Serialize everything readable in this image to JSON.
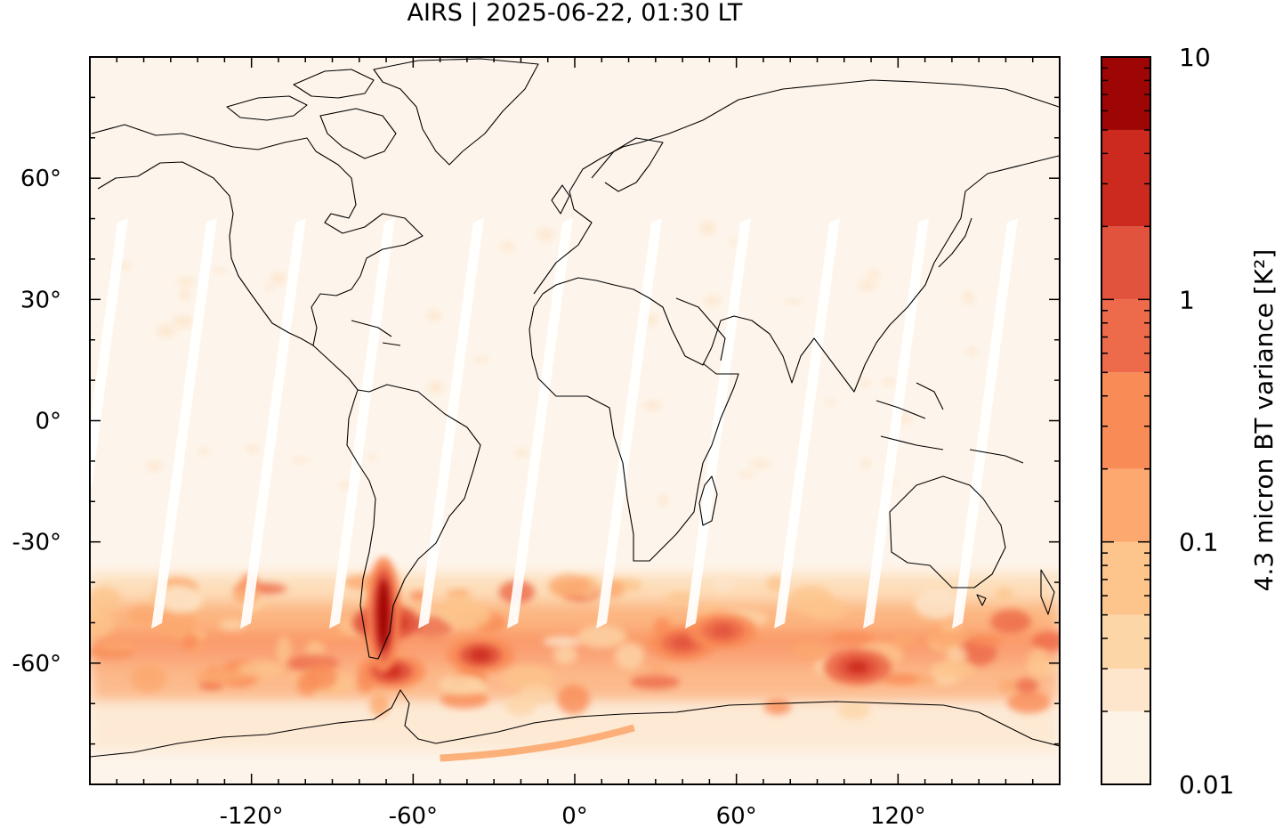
{
  "title": "AIRS | 2025-06-22, 01:30 LT",
  "map": {
    "projection": "equirectangular",
    "lon_range": [
      -180,
      180
    ],
    "lat_range": [
      -90,
      90
    ],
    "x_ticks": [
      "-120°",
      "-60°",
      "0°",
      "60°",
      "120°"
    ],
    "x_tick_values": [
      -120,
      -60,
      0,
      60,
      120
    ],
    "y_ticks": [
      "60°",
      "30°",
      "0°",
      "-30°",
      "-60°"
    ],
    "y_tick_values": [
      60,
      30,
      0,
      -30,
      -60
    ],
    "coastline_color": "#000000",
    "background_color": "#fdf5ec",
    "swath_gap_color": "#ffffff",
    "features": [
      {
        "name": "gravity-wave hotspot over southern Andes / Patagonia",
        "lon": -70,
        "lat": -50,
        "variance": 10
      },
      {
        "name": "Drake Passage / Antarctic Peninsula waves",
        "lon": -68,
        "lat": -62,
        "variance": 3
      },
      {
        "name": "South Atlantic wave packet",
        "lon": -35,
        "lat": -58,
        "variance": 3
      },
      {
        "name": "South Georgia wave packet",
        "lon": 40,
        "lat": -55,
        "variance": 2
      },
      {
        "name": "Kerguelen wave packet",
        "lon": 55,
        "lat": -52,
        "variance": 2
      },
      {
        "name": "Southern Indian Ocean wave packet",
        "lon": 105,
        "lat": -61,
        "variance": 4
      }
    ]
  },
  "colorbar": {
    "label": "4.3 micron BT variance [K²]",
    "scale": "log",
    "range": [
      0.01,
      10
    ],
    "tick_labels": [
      "10",
      "1",
      "0.1",
      "0.01"
    ],
    "tick_values": [
      10,
      1,
      0.1,
      0.01
    ],
    "levels": [
      {
        "min": 0.01,
        "max": 0.02,
        "color": "#fdf3e7"
      },
      {
        "min": 0.02,
        "max": 0.03,
        "color": "#fde6cc"
      },
      {
        "min": 0.03,
        "max": 0.05,
        "color": "#fdd6a8"
      },
      {
        "min": 0.05,
        "max": 0.1,
        "color": "#fdc58c"
      },
      {
        "min": 0.1,
        "max": 0.2,
        "color": "#fca86e"
      },
      {
        "min": 0.2,
        "max": 0.5,
        "color": "#f98b57"
      },
      {
        "min": 0.5,
        "max": 1,
        "color": "#ed6a4a"
      },
      {
        "min": 1,
        "max": 2,
        "color": "#e1533c"
      },
      {
        "min": 2,
        "max": 5,
        "color": "#cc2a1e"
      },
      {
        "min": 5,
        "max": 10,
        "color": "#9e0606"
      }
    ]
  }
}
